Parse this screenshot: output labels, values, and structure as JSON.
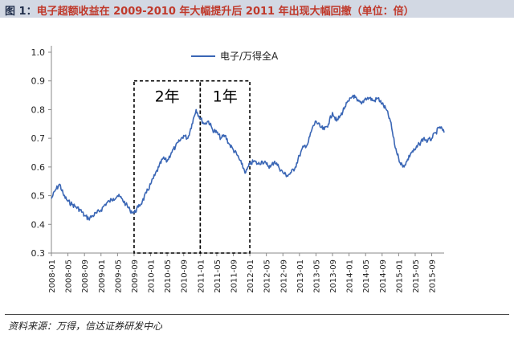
{
  "title": {
    "label": "图 1：",
    "text": "电子超额收益在 2009-2010 年大幅提升后 2011 年出现大幅回撤（单位：倍）"
  },
  "source": "资料来源：万得，信达证券研发中心",
  "colors": {
    "line": "#3a66b5",
    "axis": "#8a8a8a",
    "box": "#000000",
    "title_bg": "#d2d8e3"
  },
  "chart_data": {
    "type": "line",
    "title": "",
    "xlabel": "",
    "ylabel": "",
    "ylim": [
      0.3,
      1.0
    ],
    "yticks": [
      "1.0",
      "0.9",
      "0.8",
      "0.7",
      "0.6",
      "0.5",
      "0.4",
      "0.3"
    ],
    "x_tick_labels": [
      "2008-01",
      "2008-05",
      "2008-09",
      "2009-01",
      "2009-05",
      "2009-09",
      "2010-01",
      "2010-05",
      "2010-09",
      "2011-01",
      "2011-05",
      "2011-09",
      "2012-01",
      "2012-05",
      "2012-09",
      "2013-01",
      "2013-05",
      "2013-09",
      "2014-01",
      "2014-05",
      "2014-09",
      "2015-01",
      "2015-05",
      "2015-09"
    ],
    "legend_position": "top",
    "grid": false,
    "series": [
      {
        "name": "电子/万得全A",
        "x": [
          "2008-01",
          "2008-02",
          "2008-03",
          "2008-04",
          "2008-05",
          "2008-06",
          "2008-07",
          "2008-08",
          "2008-09",
          "2008-10",
          "2008-11",
          "2008-12",
          "2009-01",
          "2009-02",
          "2009-03",
          "2009-04",
          "2009-05",
          "2009-06",
          "2009-07",
          "2009-08",
          "2009-09",
          "2009-10",
          "2009-11",
          "2009-12",
          "2010-01",
          "2010-02",
          "2010-03",
          "2010-04",
          "2010-05",
          "2010-06",
          "2010-07",
          "2010-08",
          "2010-09",
          "2010-10",
          "2010-11",
          "2010-12",
          "2011-01",
          "2011-02",
          "2011-03",
          "2011-04",
          "2011-05",
          "2011-06",
          "2011-07",
          "2011-08",
          "2011-09",
          "2011-10",
          "2011-11",
          "2011-12",
          "2012-01",
          "2012-02",
          "2012-03",
          "2012-04",
          "2012-05",
          "2012-06",
          "2012-07",
          "2012-08",
          "2012-09",
          "2012-10",
          "2012-11",
          "2012-12",
          "2013-01",
          "2013-02",
          "2013-03",
          "2013-04",
          "2013-05",
          "2013-06",
          "2013-07",
          "2013-08",
          "2013-09",
          "2013-10",
          "2013-11",
          "2013-12",
          "2014-01",
          "2014-02",
          "2014-03",
          "2014-04",
          "2014-05",
          "2014-06",
          "2014-07",
          "2014-08",
          "2014-09",
          "2014-10",
          "2014-11",
          "2014-12",
          "2015-01",
          "2015-02",
          "2015-03",
          "2015-04",
          "2015-05",
          "2015-06",
          "2015-07",
          "2015-08",
          "2015-09",
          "2015-10",
          "2015-11",
          "2015-12"
        ],
        "values": [
          0.49,
          0.52,
          0.54,
          0.5,
          0.48,
          0.47,
          0.46,
          0.45,
          0.43,
          0.42,
          0.43,
          0.44,
          0.45,
          0.47,
          0.48,
          0.49,
          0.5,
          0.49,
          0.47,
          0.45,
          0.44,
          0.46,
          0.48,
          0.51,
          0.54,
          0.57,
          0.6,
          0.63,
          0.62,
          0.65,
          0.67,
          0.69,
          0.71,
          0.7,
          0.75,
          0.8,
          0.77,
          0.75,
          0.76,
          0.73,
          0.72,
          0.7,
          0.71,
          0.68,
          0.66,
          0.64,
          0.61,
          0.58,
          0.61,
          0.62,
          0.61,
          0.62,
          0.61,
          0.6,
          0.62,
          0.6,
          0.58,
          0.57,
          0.58,
          0.6,
          0.64,
          0.67,
          0.68,
          0.73,
          0.76,
          0.74,
          0.73,
          0.75,
          0.79,
          0.76,
          0.78,
          0.81,
          0.83,
          0.85,
          0.83,
          0.82,
          0.84,
          0.84,
          0.83,
          0.84,
          0.82,
          0.8,
          0.76,
          0.68,
          0.63,
          0.6,
          0.62,
          0.65,
          0.66,
          0.68,
          0.7,
          0.69,
          0.7,
          0.72,
          0.74,
          0.72
        ]
      }
    ],
    "annotations": [
      {
        "label": "2年",
        "from": "2009-09",
        "to": "2011-01",
        "ymin": 0.3,
        "ymax": 0.9
      },
      {
        "label": "1年",
        "from": "2011-01",
        "to": "2012-01",
        "ymin": 0.3,
        "ymax": 0.9
      }
    ]
  }
}
